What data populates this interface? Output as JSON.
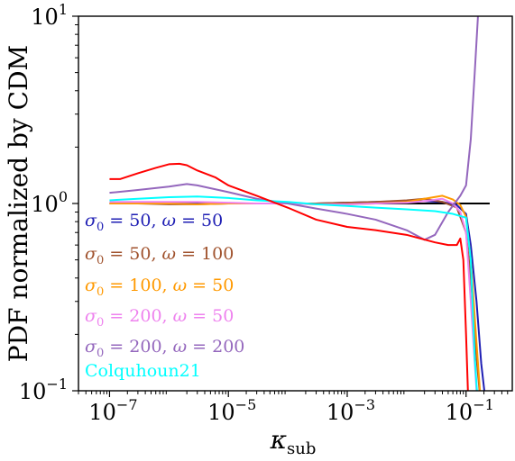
{
  "chart_data": {
    "type": "line",
    "title": "",
    "xlabel": "κ",
    "xlabel_sub": "sub",
    "ylabel": "PDF normalized by CDM",
    "xscale": "log",
    "yscale": "log",
    "xlim": [
      3e-08,
      0.6
    ],
    "ylim": [
      0.1,
      10
    ],
    "xticks": [
      {
        "value": 1e-07,
        "base": "10",
        "exp": "−7"
      },
      {
        "value": 1e-05,
        "base": "10",
        "exp": "−5"
      },
      {
        "value": 0.001,
        "base": "10",
        "exp": "−3"
      },
      {
        "value": 0.1,
        "base": "10",
        "exp": "−1"
      }
    ],
    "yticks": [
      {
        "value": 0.1,
        "base": "10",
        "exp": "−1"
      },
      {
        "value": 1,
        "base": "10",
        "exp": "0"
      },
      {
        "value": 10,
        "base": "10",
        "exp": "1"
      }
    ],
    "grid": false,
    "legend_position": "lower-left",
    "reference_line": {
      "color": "#000000",
      "x": [
        1e-07,
        0.25
      ],
      "y": [
        1.0,
        1.0
      ]
    },
    "series": [
      {
        "name": "σ0 = 50, ω = 50",
        "color": "#1f1fb4",
        "x": [
          1e-07,
          3e-07,
          1e-06,
          3e-06,
          1e-05,
          3e-05,
          0.0001,
          0.0003,
          0.001,
          0.003,
          0.01,
          0.02,
          0.04,
          0.07,
          0.1,
          0.12,
          0.15,
          0.18,
          0.22
        ],
        "y": [
          1.0,
          1.0,
          1.0,
          1.0,
          1.0,
          1.0,
          1.0,
          1.0,
          1.01,
          1.02,
          1.03,
          1.03,
          1.02,
          0.98,
          0.88,
          0.6,
          0.3,
          0.14,
          0.08
        ]
      },
      {
        "name": "σ0 = 50, ω = 100",
        "color": "#a0522d",
        "x": [
          1e-07,
          3e-07,
          1e-06,
          3e-06,
          1e-05,
          3e-05,
          0.0001,
          0.0003,
          0.001,
          0.003,
          0.01,
          0.02,
          0.04,
          0.07,
          0.1,
          0.12,
          0.15,
          0.18
        ],
        "y": [
          1.0,
          1.0,
          0.99,
          0.99,
          1.0,
          1.0,
          1.0,
          1.0,
          1.01,
          1.02,
          1.04,
          1.06,
          1.02,
          0.95,
          0.7,
          0.4,
          0.15,
          0.08
        ]
      },
      {
        "name": "σ0 = 100, ω = 50",
        "color": "#ff9900",
        "x": [
          1e-07,
          3e-07,
          1e-06,
          3e-06,
          1e-05,
          3e-05,
          0.0001,
          0.0003,
          0.001,
          0.003,
          0.01,
          0.02,
          0.04,
          0.06,
          0.08,
          0.1,
          0.12,
          0.15,
          0.18
        ],
        "y": [
          1.0,
          1.0,
          1.0,
          0.99,
          1.0,
          1.0,
          1.0,
          0.99,
          0.99,
          1.0,
          1.02,
          1.06,
          1.1,
          1.05,
          0.98,
          0.85,
          0.5,
          0.18,
          0.08
        ]
      },
      {
        "name": "σ0 = 200, ω = 50",
        "color": "#ee82ee",
        "x": [
          1e-07,
          3e-07,
          1e-06,
          3e-06,
          1e-05,
          3e-05,
          0.0001,
          0.0003,
          0.001,
          0.003,
          0.01,
          0.02,
          0.04,
          0.06,
          0.08,
          0.1,
          0.12,
          0.15
        ],
        "y": [
          1.02,
          1.02,
          1.02,
          1.02,
          1.01,
          1.0,
          1.0,
          0.99,
          0.99,
          1.0,
          1.01,
          1.03,
          1.06,
          1.0,
          0.9,
          0.7,
          0.3,
          0.1
        ]
      },
      {
        "name": "σ0 = 200, ω = 200",
        "color": "#9467bd",
        "x": [
          1e-07,
          3e-07,
          1e-06,
          2e-06,
          3e-06,
          1e-05,
          3e-05,
          0.0001,
          0.0003,
          0.001,
          0.003,
          0.01,
          0.02,
          0.03,
          0.05,
          0.08,
          0.1,
          0.12,
          0.14,
          0.16
        ],
        "y": [
          1.14,
          1.18,
          1.23,
          1.27,
          1.25,
          1.15,
          1.06,
          1.0,
          0.94,
          0.88,
          0.82,
          0.72,
          0.64,
          0.68,
          0.9,
          1.1,
          1.25,
          2.2,
          5.0,
          10.5
        ]
      },
      {
        "name": "Colquhoun21",
        "color": "#00ffff",
        "x": [
          1e-07,
          3e-07,
          1e-06,
          3e-06,
          1e-05,
          3e-05,
          0.0001,
          0.0003,
          0.001,
          0.003,
          0.01,
          0.03,
          0.06,
          0.1,
          0.12,
          0.14,
          0.16
        ],
        "y": [
          1.04,
          1.06,
          1.08,
          1.09,
          1.07,
          1.04,
          1.02,
          0.99,
          0.97,
          0.95,
          0.93,
          0.91,
          0.88,
          0.84,
          0.5,
          0.15,
          0.08
        ]
      },
      {
        "name": "",
        "color": "#ff0000",
        "x": [
          1e-07,
          1.5e-07,
          3e-07,
          6e-07,
          1e-06,
          1.5e-06,
          2e-06,
          3e-06,
          6e-06,
          1e-05,
          3e-05,
          0.0001,
          0.0003,
          0.001,
          0.003,
          0.01,
          0.03,
          0.05,
          0.07,
          0.08,
          0.09,
          0.1,
          0.11
        ],
        "y": [
          1.35,
          1.35,
          1.45,
          1.55,
          1.62,
          1.63,
          1.6,
          1.5,
          1.38,
          1.25,
          1.1,
          0.95,
          0.82,
          0.75,
          0.72,
          0.68,
          0.62,
          0.6,
          0.6,
          0.65,
          0.5,
          0.2,
          0.08
        ]
      }
    ],
    "legend": [
      {
        "sigma": "σ",
        "sigma_sub": "0",
        "mid": " = 50, ",
        "omega": "ω",
        "tail": " = 50",
        "color": "#1f1fb4"
      },
      {
        "sigma": "σ",
        "sigma_sub": "0",
        "mid": " = 50, ",
        "omega": "ω",
        "tail": " = 100",
        "color": "#a0522d"
      },
      {
        "sigma": "σ",
        "sigma_sub": "0",
        "mid": " = 100, ",
        "omega": "ω",
        "tail": " = 50",
        "color": "#ff9900"
      },
      {
        "sigma": "σ",
        "sigma_sub": "0",
        "mid": " = 200, ",
        "omega": "ω",
        "tail": " = 50",
        "color": "#ee82ee"
      },
      {
        "sigma": "σ",
        "sigma_sub": "0",
        "mid": " = 200, ",
        "omega": "ω",
        "tail": " = 200",
        "color": "#9467bd"
      },
      {
        "plain": "Colquhoun21",
        "color": "#00ffff"
      }
    ]
  }
}
